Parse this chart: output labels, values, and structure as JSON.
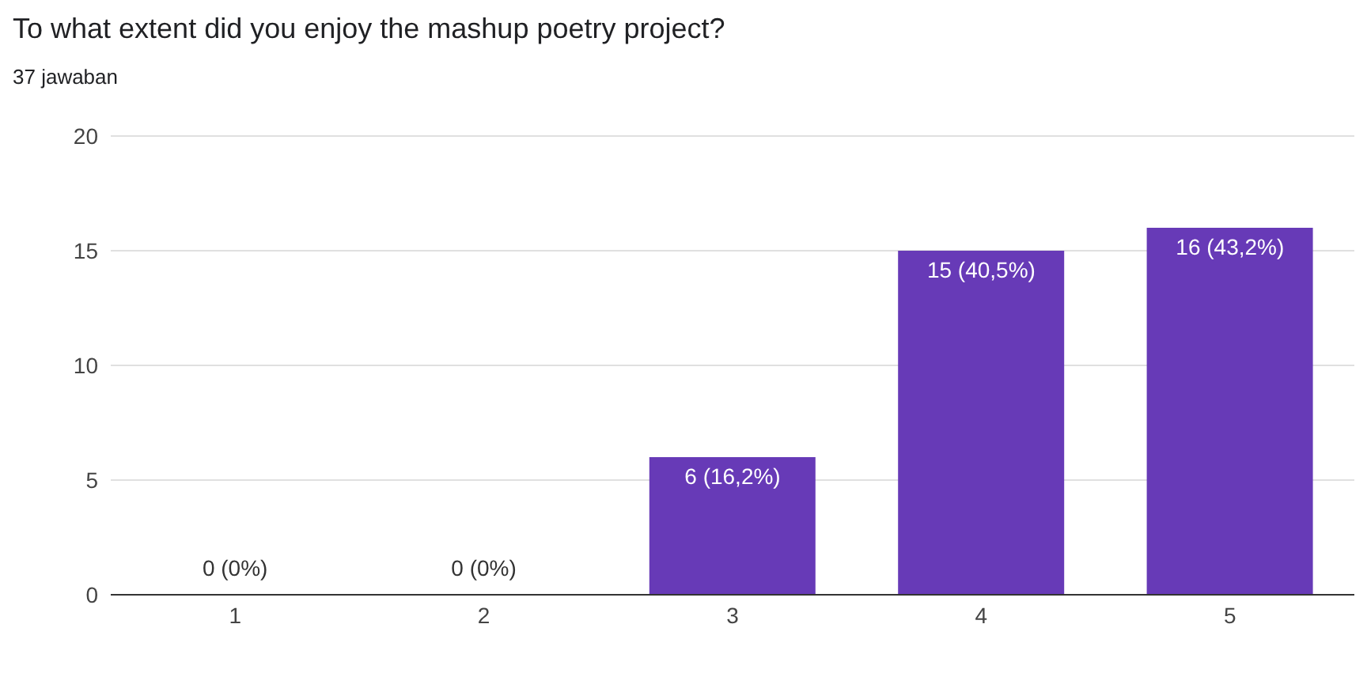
{
  "chart_data": {
    "type": "bar",
    "title": "To what extent did you enjoy the mashup poetry project?",
    "subtitle": "37 jawaban",
    "categories": [
      "1",
      "2",
      "3",
      "4",
      "5"
    ],
    "values": [
      0,
      0,
      6,
      15,
      16
    ],
    "value_labels": [
      "0 (0%)",
      "0 (0%)",
      "6 (16,2%)",
      "15 (40,5%)",
      "16 (43,2%)"
    ],
    "color": "#673ab7",
    "ylim": [
      0,
      20
    ],
    "yticks": [
      0,
      5,
      10,
      15,
      20
    ],
    "grid": "y"
  }
}
